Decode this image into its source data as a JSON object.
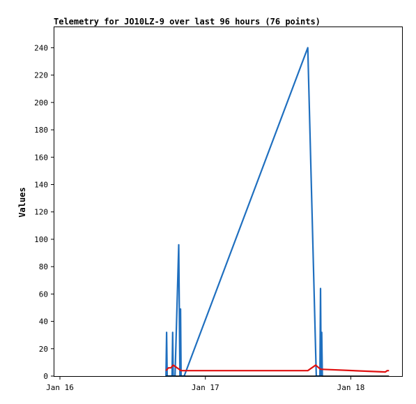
{
  "chart_data": {
    "type": "line",
    "title": "Telemetry for JO10LZ-9 over last 96 hours (76 points)",
    "xlabel": "",
    "ylabel": "Values",
    "x_ticks": [
      "Jan 16",
      "Jan 17",
      "Jan 18"
    ],
    "x_range": [
      "2024-01-16T00:00",
      "2024-01-18T06:30"
    ],
    "ylim": [
      0,
      255
    ],
    "y_ticks": [
      0,
      20,
      40,
      60,
      80,
      100,
      120,
      140,
      160,
      180,
      200,
      220,
      240
    ],
    "grid": false,
    "legend": "none",
    "series": [
      {
        "color": "#1f6fbf",
        "points": [
          [
            "2024-01-16T17:30",
            0
          ],
          [
            "2024-01-16T17:36",
            32
          ],
          [
            "2024-01-16T17:42",
            0
          ],
          [
            "2024-01-16T18:30",
            0
          ],
          [
            "2024-01-16T18:36",
            32
          ],
          [
            "2024-01-16T18:42",
            0
          ],
          [
            "2024-01-16T19:00",
            0
          ],
          [
            "2024-01-16T19:36",
            96
          ],
          [
            "2024-01-16T19:48",
            0
          ],
          [
            "2024-01-16T19:54",
            49
          ],
          [
            "2024-01-16T20:00",
            0
          ],
          [
            "2024-01-16T20:30",
            0
          ],
          [
            "2024-01-17T16:54",
            240
          ],
          [
            "2024-01-17T18:18",
            0
          ],
          [
            "2024-01-17T18:54",
            0
          ],
          [
            "2024-01-17T19:00",
            64
          ],
          [
            "2024-01-17T19:06",
            0
          ],
          [
            "2024-01-17T19:12",
            32
          ],
          [
            "2024-01-17T19:18",
            0
          ]
        ]
      },
      {
        "color": "#e01010",
        "points": [
          [
            "2024-01-16T17:30",
            4
          ],
          [
            "2024-01-16T17:54",
            6
          ],
          [
            "2024-01-16T18:18",
            6
          ],
          [
            "2024-01-16T18:42",
            8
          ],
          [
            "2024-01-16T20:00",
            4
          ],
          [
            "2024-01-17T16:54",
            4
          ],
          [
            "2024-01-17T18:12",
            8
          ],
          [
            "2024-01-17T19:00",
            5
          ],
          [
            "2024-01-18T05:42",
            3
          ],
          [
            "2024-01-18T06:00",
            4
          ],
          [
            "2024-01-18T06:18",
            4
          ]
        ]
      },
      {
        "color": "#000000",
        "points": [
          [
            "2024-01-16T17:30",
            0
          ],
          [
            "2024-01-18T06:18",
            0
          ]
        ]
      }
    ]
  }
}
